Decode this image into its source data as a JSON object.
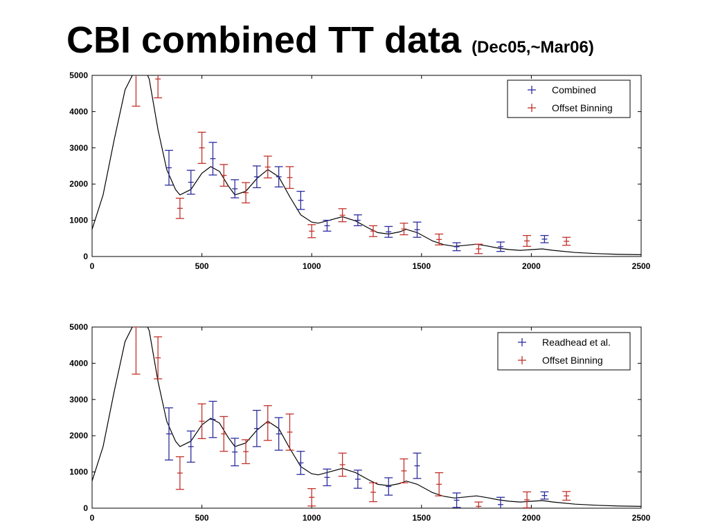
{
  "slide": {
    "title": "CBI combined TT data",
    "subtitle": "(Dec05,~Mar06)"
  },
  "colors": {
    "series_blue": "#2b2b9e",
    "series_red": "#c0302a",
    "model_curve": "#000000"
  },
  "chart_data": [
    {
      "type": "scatter",
      "title": "",
      "xlabel": "",
      "ylabel": "",
      "xlim": [
        0,
        2500
      ],
      "ylim": [
        0,
        5000
      ],
      "xticks": [
        0,
        500,
        1000,
        1500,
        2000,
        2500
      ],
      "yticks": [
        0,
        1000,
        2000,
        3000,
        4000,
        5000
      ],
      "grid": false,
      "legend_position": "top-right",
      "model_curve": {
        "x": [
          0,
          50,
          100,
          150,
          200,
          230,
          260,
          300,
          340,
          380,
          400,
          450,
          500,
          540,
          580,
          620,
          650,
          700,
          750,
          800,
          850,
          900,
          950,
          1000,
          1030,
          1080,
          1140,
          1200,
          1260,
          1300,
          1350,
          1400,
          1430,
          1480,
          1550,
          1600,
          1650,
          1700,
          1750,
          1800,
          1850,
          1900,
          1950,
          2000,
          2050,
          2100,
          2200,
          2300,
          2400,
          2500
        ],
        "y": [
          750,
          1700,
          3200,
          4600,
          5200,
          5300,
          4900,
          3500,
          2400,
          1850,
          1700,
          1850,
          2300,
          2480,
          2350,
          1950,
          1700,
          1800,
          2150,
          2400,
          2200,
          1650,
          1150,
          950,
          920,
          1000,
          1100,
          980,
          780,
          660,
          620,
          680,
          750,
          660,
          430,
          330,
          280,
          310,
          340,
          290,
          230,
          190,
          170,
          190,
          210,
          170,
          110,
          80,
          60,
          50
        ]
      },
      "series": [
        {
          "name": "Combined",
          "color": "#2b2b9e",
          "x": [
            350,
            450,
            550,
            650,
            750,
            850,
            950,
            1070,
            1210,
            1350,
            1480,
            1660,
            1860,
            2060
          ],
          "y": [
            2450,
            2050,
            2700,
            1870,
            2200,
            2200,
            1550,
            850,
            1000,
            680,
            740,
            270,
            270,
            480
          ],
          "err": [
            480,
            330,
            450,
            250,
            300,
            280,
            250,
            150,
            150,
            150,
            210,
            110,
            130,
            100
          ]
        },
        {
          "name": "Offset Binning",
          "color": "#c0302a",
          "x": [
            200,
            300,
            400,
            500,
            600,
            700,
            800,
            900,
            1000,
            1140,
            1280,
            1420,
            1580,
            1760,
            1980,
            2160
          ],
          "y": [
            5200,
            4900,
            1330,
            3000,
            2240,
            1760,
            2470,
            2180,
            700,
            1140,
            700,
            760,
            470,
            210,
            430,
            420
          ],
          "err": [
            1050,
            520,
            280,
            430,
            300,
            280,
            300,
            300,
            180,
            180,
            150,
            160,
            150,
            130,
            150,
            110
          ]
        }
      ]
    },
    {
      "type": "scatter",
      "title": "",
      "xlabel": "",
      "ylabel": "",
      "xlim": [
        0,
        2500
      ],
      "ylim": [
        0,
        5000
      ],
      "xticks": [
        0,
        500,
        1000,
        1500,
        2000,
        2500
      ],
      "yticks": [
        0,
        1000,
        2000,
        3000,
        4000,
        5000
      ],
      "grid": false,
      "legend_position": "top-right",
      "model_curve": {
        "x": [
          0,
          50,
          100,
          150,
          200,
          230,
          260,
          300,
          340,
          380,
          400,
          450,
          500,
          540,
          580,
          620,
          650,
          700,
          750,
          800,
          850,
          900,
          950,
          1000,
          1030,
          1080,
          1140,
          1200,
          1260,
          1300,
          1350,
          1400,
          1430,
          1480,
          1550,
          1600,
          1650,
          1700,
          1750,
          1800,
          1850,
          1900,
          1950,
          2000,
          2050,
          2100,
          2200,
          2300,
          2400,
          2500
        ],
        "y": [
          750,
          1700,
          3200,
          4600,
          5200,
          5300,
          4900,
          3500,
          2400,
          1850,
          1700,
          1850,
          2300,
          2480,
          2350,
          1950,
          1700,
          1800,
          2150,
          2400,
          2200,
          1650,
          1150,
          950,
          920,
          1000,
          1100,
          980,
          780,
          660,
          620,
          680,
          750,
          660,
          430,
          330,
          280,
          310,
          340,
          290,
          230,
          190,
          170,
          190,
          210,
          170,
          110,
          80,
          60,
          50
        ]
      },
      "series": [
        {
          "name": "Readhead et al.",
          "color": "#2b2b9e",
          "x": [
            350,
            450,
            550,
            650,
            750,
            850,
            950,
            1070,
            1210,
            1350,
            1480,
            1660,
            1860,
            2060
          ],
          "y": [
            2050,
            1700,
            2450,
            1550,
            2200,
            2050,
            1250,
            850,
            800,
            600,
            1170,
            220,
            100,
            350
          ],
          "err": [
            720,
            430,
            500,
            380,
            500,
            450,
            320,
            230,
            250,
            240,
            350,
            200,
            200,
            100
          ]
        },
        {
          "name": "Offset Binning",
          "color": "#c0302a",
          "x": [
            200,
            300,
            400,
            500,
            600,
            700,
            800,
            900,
            1000,
            1140,
            1280,
            1420,
            1580,
            1760,
            1980,
            2160
          ],
          "y": [
            5000,
            4150,
            970,
            2400,
            2050,
            1560,
            2350,
            2100,
            300,
            1200,
            440,
            1030,
            660,
            50,
            230,
            340
          ],
          "err": [
            1300,
            580,
            450,
            480,
            480,
            330,
            480,
            500,
            240,
            320,
            260,
            330,
            320,
            120,
            220,
            120
          ]
        }
      ]
    }
  ]
}
